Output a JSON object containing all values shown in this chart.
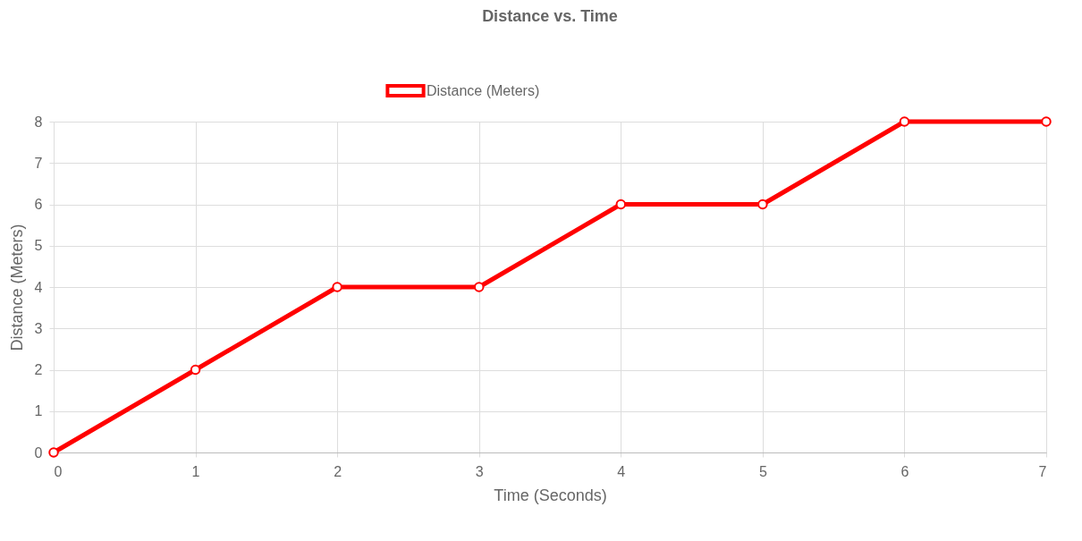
{
  "chart_data": {
    "type": "line",
    "title": "Distance vs. Time",
    "xlabel": "Time (Seconds)",
    "ylabel": "Distance (Meters)",
    "x": [
      0,
      1,
      2,
      3,
      4,
      5,
      6,
      7
    ],
    "series": [
      {
        "name": "Distance (Meters)",
        "color": "#ff0000",
        "values": [
          0,
          2,
          4,
          4,
          6,
          6,
          8,
          8
        ]
      }
    ],
    "xlim": [
      0,
      7
    ],
    "xticks": [
      0,
      1,
      2,
      3,
      4,
      5,
      6,
      7
    ],
    "ylim": [
      0,
      8
    ],
    "yticks": [
      0,
      1,
      2,
      3,
      4,
      5,
      6,
      7,
      8
    ],
    "grid": true,
    "legend": "top",
    "marker": "circle",
    "line_style": "solid"
  }
}
